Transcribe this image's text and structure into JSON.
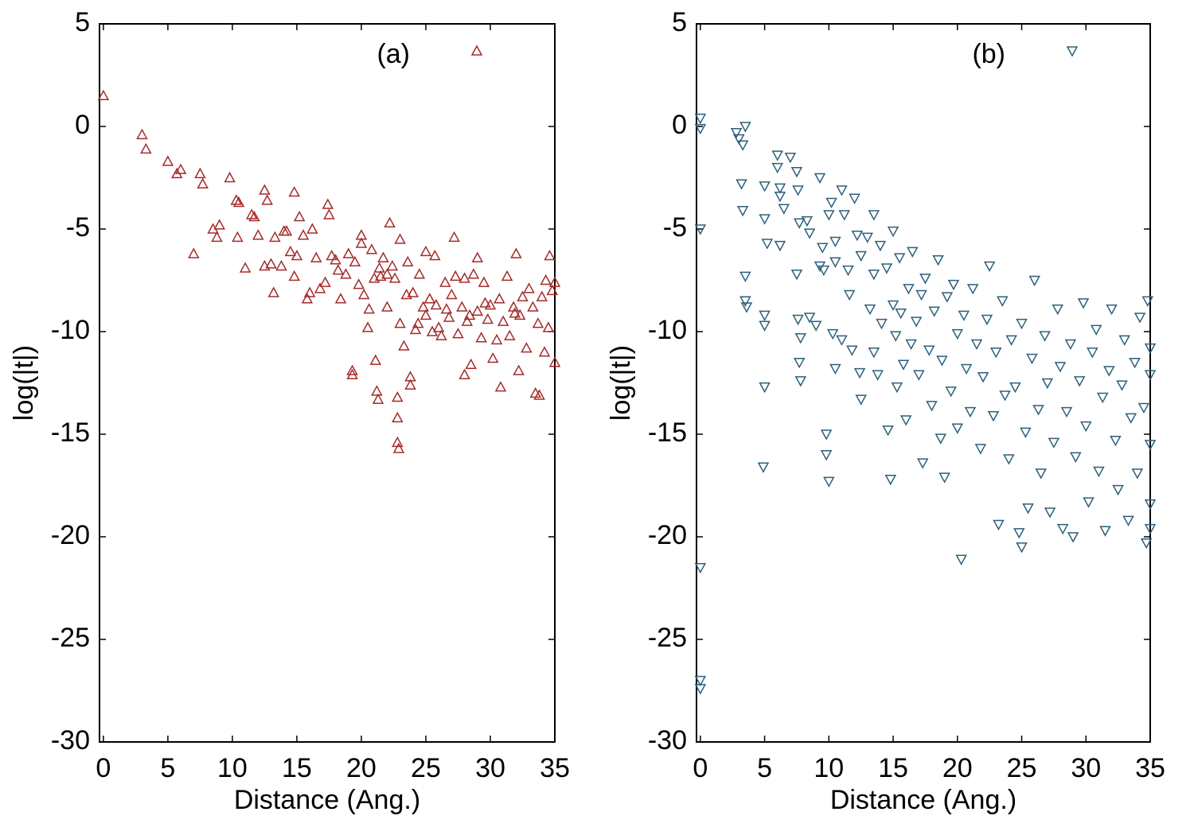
{
  "chart_data": [
    {
      "type": "scatter",
      "xlabel": "Distance (Ang.)",
      "ylabel": "log(|t|)",
      "xlim": [
        -0.3,
        35
      ],
      "ylim": [
        -30,
        5
      ],
      "xticks": [
        0,
        5,
        10,
        15,
        20,
        25,
        30,
        35
      ],
      "yticks": [
        -30,
        -25,
        -20,
        -15,
        -10,
        -5,
        0,
        5
      ],
      "legend": "upper right",
      "marker": "triangle-up",
      "series": [
        {
          "name": "(a)",
          "color": "#a52a2a",
          "x": [
            0,
            3,
            3.3,
            5,
            5.7,
            6,
            7.5,
            7.7,
            9.8,
            7,
            8.5,
            8.8,
            9,
            10.3,
            10.5,
            10.4,
            11,
            11.5,
            11.7,
            12,
            12.5,
            12.7,
            12.5,
            13,
            13.2,
            13.3,
            13.8,
            14,
            14.2,
            14.5,
            14.8,
            14.8,
            15,
            15.2,
            15.5,
            15.8,
            16,
            16.2,
            16.5,
            16.8,
            17.2,
            17.4,
            17.5,
            17.7,
            18,
            18.2,
            18.4,
            18.8,
            19,
            19.3,
            19.3,
            19.5,
            19.8,
            20,
            20,
            20.2,
            20.5,
            20.6,
            20.8,
            21,
            21.1,
            21.2,
            21.3,
            21.5,
            21.7,
            22,
            22.2,
            22.4,
            22.6,
            22.8,
            22.8,
            22.8,
            22.9,
            23,
            23,
            23.3,
            23.5,
            23.6,
            23.8,
            23.8,
            24,
            24.2,
            24.5,
            24.8,
            25,
            25,
            25.3,
            25.5,
            25.7,
            25.8,
            26,
            26.2,
            26.5,
            26.8,
            27,
            27.2,
            27.3,
            27.5,
            27.8,
            28,
            28,
            28.2,
            28.5,
            28.7,
            29,
            29,
            29.3,
            29.5,
            29.8,
            30,
            30.2,
            30.5,
            30.7,
            30.8,
            31,
            31.3,
            31.5,
            31.8,
            32,
            32.2,
            32.3,
            32.5,
            32.8,
            33,
            33.3,
            33.5,
            33.7,
            34,
            34.2,
            34.5,
            34.6,
            34.8,
            35,
            35,
            34.3,
            33.8,
            31.9,
            29.6,
            28.4,
            26.6,
            24.4,
            22,
            21.4
          ],
          "values": [
            1.5,
            -0.4,
            -1.1,
            -1.7,
            -2.3,
            -2.1,
            -2.3,
            -2.8,
            -2.5,
            -6.2,
            -5,
            -5.4,
            -4.8,
            -3.6,
            -3.7,
            -5.4,
            -6.9,
            -4.3,
            -4.4,
            -5.3,
            -3.1,
            -3.6,
            -6.8,
            -6.7,
            -8.1,
            -5.4,
            -6.8,
            -5.1,
            -5.1,
            -6.1,
            -3.2,
            -7.3,
            -6.3,
            -4.4,
            -5.3,
            -8.4,
            -8.1,
            -5,
            -6.4,
            -7.9,
            -7.6,
            -3.8,
            -4.3,
            -6.3,
            -6.5,
            -7,
            -8.4,
            -7.2,
            -6.2,
            -11.9,
            -12.1,
            -6.6,
            -7.7,
            -5.3,
            -5.7,
            -8.2,
            -9.8,
            -8.9,
            -6,
            -7.4,
            -11.4,
            -12.9,
            -13.3,
            -7.3,
            -6.4,
            -8.8,
            -4.7,
            -6.8,
            -7.4,
            -13.2,
            -14.2,
            -15.4,
            -15.7,
            -9.6,
            -5.5,
            -10.7,
            -8.2,
            -6.6,
            -12.2,
            -12.6,
            -8.1,
            -9.9,
            -7.2,
            -8.8,
            -6.1,
            -9.2,
            -8.4,
            -10,
            -6.3,
            -8.7,
            -9.8,
            -10.2,
            -7.6,
            -9.3,
            -8.2,
            -5.4,
            -7.3,
            -10.1,
            -8.8,
            -7.4,
            -12.1,
            -9.5,
            -11.6,
            -7.2,
            -9,
            -6.4,
            -10.3,
            -7.6,
            -9.4,
            -8.7,
            -11.3,
            -10.4,
            -8.4,
            -12.7,
            -9.5,
            -7.3,
            -10.2,
            -8.8,
            -6.2,
            -11.9,
            -9.2,
            -8.3,
            -10.8,
            -7.9,
            -8.8,
            -13,
            -9.6,
            -8.3,
            -11,
            -9.8,
            -6.3,
            -8,
            -11.5,
            -7.6,
            -7.5,
            -13.1,
            -9.1,
            -8.6,
            -9.2,
            -8.9,
            -9.6,
            -7.2,
            -6.9
          ]
        }
      ]
    },
    {
      "type": "scatter",
      "xlabel": "Distance (Ang.)",
      "ylabel": "log(|t|)",
      "xlim": [
        -0.3,
        35
      ],
      "ylim": [
        -30,
        5
      ],
      "xticks": [
        0,
        5,
        10,
        15,
        20,
        25,
        30,
        35
      ],
      "yticks": [
        -30,
        -25,
        -20,
        -15,
        -10,
        -5,
        0,
        5
      ],
      "legend": "upper right",
      "marker": "triangle-down",
      "series": [
        {
          "name": "(b)",
          "color": "#2d5f7a",
          "x": [
            0,
            0,
            0,
            0,
            0,
            0,
            2.8,
            3,
            3.3,
            3.5,
            3.2,
            3.3,
            3.5,
            3.5,
            3.6,
            5,
            5,
            5.2,
            5,
            5,
            5,
            4.9,
            6,
            6,
            6.2,
            6.2,
            6.5,
            6.2,
            7,
            7.5,
            7.6,
            7.7,
            7.5,
            7.6,
            7.8,
            7.7,
            7.8,
            8.3,
            8.5,
            8.5,
            9,
            9.3,
            9.3,
            9.5,
            9.6,
            9.8,
            9.8,
            10,
            10.2,
            10,
            10.5,
            10.5,
            10.3,
            10.5,
            11,
            11.2,
            11,
            11.5,
            11.6,
            11.8,
            12,
            12.2,
            12.5,
            12.4,
            12.5,
            13,
            13.2,
            13.5,
            13.5,
            13.5,
            13.8,
            14,
            14.1,
            14.5,
            14.6,
            14.8,
            15,
            15,
            15.2,
            15.3,
            15.5,
            15.6,
            15.8,
            16,
            16.2,
            16.4,
            16.5,
            16.8,
            17,
            17.2,
            17.3,
            17.5,
            17.8,
            18,
            18.2,
            18.5,
            18.7,
            18.8,
            19,
            19.2,
            19.5,
            19.7,
            20,
            20,
            20.3,
            20.5,
            20.7,
            21,
            21.2,
            21.5,
            21.8,
            22,
            22.3,
            22.5,
            22.8,
            23,
            23.2,
            23.5,
            23.7,
            24,
            24.2,
            24.5,
            24.8,
            25,
            25,
            25.3,
            25.5,
            25.8,
            26,
            26.3,
            26.5,
            26.8,
            27,
            27.2,
            27.5,
            27.8,
            28,
            28.2,
            28.5,
            28.8,
            29,
            29.2,
            29.5,
            29.8,
            30,
            30.2,
            30.5,
            30.8,
            31,
            31.3,
            31.5,
            31.8,
            32,
            32.3,
            32.5,
            32.8,
            33,
            33.3,
            33.5,
            33.8,
            34,
            34.2,
            34.5,
            34.7,
            34.8,
            35,
            35,
            35,
            35,
            35
          ],
          "values": [
            0.4,
            -0.1,
            -5,
            -21.5,
            -27,
            -27.4,
            -0.3,
            -0.6,
            -0.9,
            0,
            -2.8,
            -4.1,
            -7.3,
            -8.5,
            -8.8,
            -2.9,
            -4.5,
            -5.7,
            -9.2,
            -9.7,
            -12.7,
            -16.6,
            -1.4,
            -2,
            -3,
            -3.4,
            -4,
            -5.8,
            -1.5,
            -2.2,
            -3.1,
            -4.7,
            -7.2,
            -9.4,
            -10.3,
            -11.5,
            -12.4,
            -4.6,
            -5.2,
            -9.3,
            -9.7,
            -2.5,
            -6.8,
            -5.9,
            -7,
            -15,
            -16,
            -17.3,
            -3.7,
            -4.3,
            -5.6,
            -6.6,
            -10.1,
            -11.8,
            -3.1,
            -4.3,
            -10.4,
            -7,
            -8.2,
            -10.9,
            -3.5,
            -5.3,
            -6.3,
            -12,
            -13.3,
            -5.4,
            -8.9,
            -4.3,
            -7.2,
            -11,
            -12.1,
            -5.8,
            -9.6,
            -6.9,
            -14.8,
            -17.2,
            -5.1,
            -8.7,
            -10.2,
            -12.7,
            -6.4,
            -9.1,
            -11.6,
            -14.3,
            -7.9,
            -10.6,
            -6.1,
            -9.5,
            -12.1,
            -8.2,
            -16.4,
            -7.4,
            -10.9,
            -13.6,
            -9,
            -6.5,
            -15.2,
            -11.4,
            -17.1,
            -8.3,
            -12.9,
            -7.7,
            -10.1,
            -14.7,
            -21.1,
            -9.2,
            -11.8,
            -13.9,
            -7.9,
            -10.6,
            -15.7,
            -12.2,
            -9.4,
            -6.8,
            -14.1,
            -11,
            -19.4,
            -8.5,
            -13.1,
            -16.2,
            -10.4,
            -12.7,
            -19.8,
            -9.6,
            -20.5,
            -14.9,
            -18.6,
            -11.3,
            -7.5,
            -13.8,
            -16.9,
            -10.2,
            -12.5,
            -18.8,
            -15.4,
            -8.9,
            -11.7,
            -19.6,
            -13.9,
            -10.6,
            -20,
            -16.1,
            -12.4,
            -8.6,
            -14.6,
            -18.3,
            -11,
            -9.9,
            -16.8,
            -13.2,
            -19.7,
            -11.9,
            -8.9,
            -15.3,
            -17.7,
            -12.6,
            -10.4,
            -19.2,
            -14.2,
            -11.5,
            -16.9,
            -9.3,
            -13.7,
            -20.3,
            -8.5,
            -12.1,
            -15.5,
            -18.4,
            -19.6,
            -10.8
          ]
        }
      ]
    }
  ]
}
